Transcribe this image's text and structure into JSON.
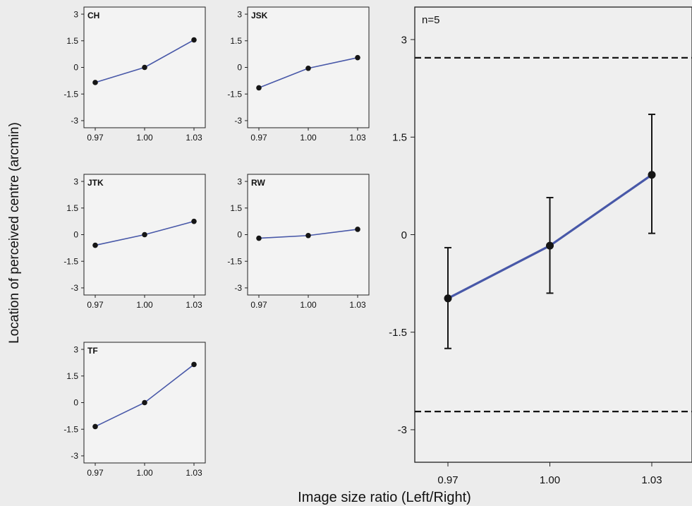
{
  "figure": {
    "ylabel": "Location of perceived centre (arcmin)",
    "xlabel": "Image size ratio (Left/Right)"
  },
  "colors": {
    "line": "#4858a8",
    "marker": "#151515",
    "axis": "#202020",
    "reference": "#151515"
  },
  "chart_data": [
    {
      "id": "ch",
      "type": "line",
      "panel_label": "CH",
      "x": [
        0.97,
        1.0,
        1.03
      ],
      "y": [
        -0.85,
        0.0,
        1.55
      ],
      "ylim": [
        -3.4,
        3.4
      ],
      "xticks": [
        "0.97",
        "1.00",
        "1.03"
      ],
      "yticks": [
        "3",
        "1.5",
        "0",
        "-1.5",
        "-3"
      ]
    },
    {
      "id": "jsk",
      "type": "line",
      "panel_label": "JSK",
      "x": [
        0.97,
        1.0,
        1.03
      ],
      "y": [
        -1.15,
        -0.05,
        0.55
      ],
      "ylim": [
        -3.4,
        3.4
      ],
      "xticks": [
        "0.97",
        "1.00",
        "1.03"
      ],
      "yticks": [
        "3",
        "1.5",
        "0",
        "-1.5",
        "-3"
      ]
    },
    {
      "id": "jtk",
      "type": "line",
      "panel_label": "JTK",
      "x": [
        0.97,
        1.0,
        1.03
      ],
      "y": [
        -0.6,
        0.0,
        0.75
      ],
      "ylim": [
        -3.4,
        3.4
      ],
      "xticks": [
        "0.97",
        "1.00",
        "1.03"
      ],
      "yticks": [
        "3",
        "1.5",
        "0",
        "-1.5",
        "-3"
      ]
    },
    {
      "id": "rw",
      "type": "line",
      "panel_label": "RW",
      "x": [
        0.97,
        1.0,
        1.03
      ],
      "y": [
        -0.2,
        -0.05,
        0.3
      ],
      "ylim": [
        -3.4,
        3.4
      ],
      "xticks": [
        "0.97",
        "1.00",
        "1.03"
      ],
      "yticks": [
        "3",
        "1.5",
        "0",
        "-1.5",
        "-3"
      ]
    },
    {
      "id": "tf",
      "type": "line",
      "panel_label": "TF",
      "x": [
        0.97,
        1.0,
        1.03
      ],
      "y": [
        -1.35,
        0.0,
        2.15
      ],
      "ylim": [
        -3.4,
        3.4
      ],
      "xticks": [
        "0.97",
        "1.00",
        "1.03"
      ],
      "yticks": [
        "3",
        "1.5",
        "0",
        "-1.5",
        "-3"
      ]
    },
    {
      "id": "mean",
      "type": "line",
      "panel_label": "n=5",
      "x": [
        0.97,
        1.0,
        1.03
      ],
      "y": [
        -0.98,
        -0.17,
        0.92
      ],
      "error_low": [
        -1.75,
        -0.9,
        0.02
      ],
      "error_high": [
        -0.2,
        0.57,
        1.85
      ],
      "reference_lines": [
        2.72,
        -2.72
      ],
      "ylim": [
        -3.5,
        3.5
      ],
      "xticks": [
        "0.97",
        "1.00",
        "1.03"
      ],
      "yticks": [
        "3",
        "1.5",
        "0",
        "-1.5",
        "-3"
      ]
    }
  ]
}
